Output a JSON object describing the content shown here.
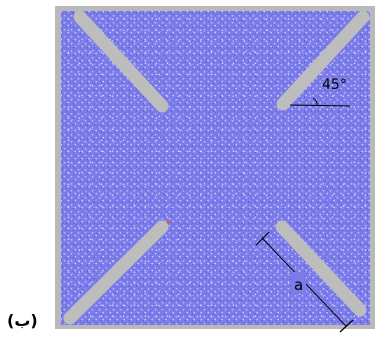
{
  "figure": {
    "panel_label": "(ب)",
    "angle_label": "45°",
    "length_label": "a"
  },
  "colors": {
    "particles": "#7b7bea",
    "particle_highlight": "#b8b8f4",
    "particle_dark": "#5151d6",
    "frame": "#b9b9b9",
    "crack": "#bdbdbd",
    "crack_edge": "#a8a8a8",
    "annotation": "#000000",
    "marker": "#d9534f"
  }
}
